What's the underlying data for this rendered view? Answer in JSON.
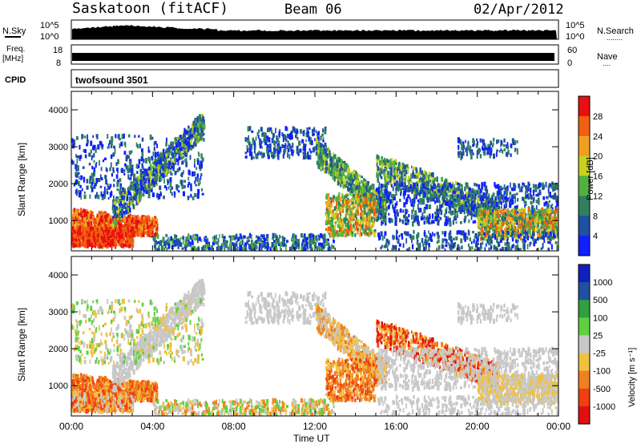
{
  "header": {
    "station": "Saskatoon (fitACF)",
    "beam": "Beam 06",
    "date": "02/Apr/2012"
  },
  "panels": {
    "nsky": {
      "label": "N.Sky",
      "left_ticks": [
        "10^5",
        "10^0"
      ],
      "right_ticks": [
        "10^5",
        "10^0"
      ],
      "right_label": "N.Search",
      "right_label_dots": "........"
    },
    "freq": {
      "label_line1": "Freq.",
      "label_line2": "[MHz]",
      "left_ticks": [
        "18",
        "8"
      ],
      "right_ticks": [
        "60",
        "0"
      ],
      "right_label": "Nave",
      "right_label_dots": "...."
    },
    "cpid": {
      "label": "CPID",
      "value": "twofsound 3501"
    }
  },
  "chart_data": [
    {
      "type": "heatmap",
      "title": "",
      "ylabel": "Slant Range [km]",
      "xlabel": "",
      "ylim": [
        180,
        4500
      ],
      "y_ticks": [
        "1000",
        "2000",
        "3000",
        "4000"
      ],
      "x_ticks": [
        "00:00",
        "04:00",
        "08:00",
        "12:00",
        "16:00",
        "20:00",
        "00:00"
      ],
      "colorbar": {
        "label": "Power [dB]",
        "ticks": [
          "4",
          "8",
          "12",
          "16",
          "20",
          "24",
          "28"
        ],
        "colors": [
          "#1020ff",
          "#2050a0",
          "#308060",
          "#50b040",
          "#c8d020",
          "#f0a020",
          "#f06010",
          "#e81010"
        ]
      }
    },
    {
      "type": "heatmap",
      "title": "",
      "ylabel": "Slant Range [km]",
      "xlabel": "Time UT",
      "ylim": [
        180,
        4500
      ],
      "y_ticks": [
        "1000",
        "2000",
        "3000",
        "4000"
      ],
      "x_ticks": [
        "00:00",
        "04:00",
        "08:00",
        "12:00",
        "16:00",
        "20:00",
        "00:00"
      ],
      "colorbar": {
        "label": "Velocity [m s⁻¹]",
        "ticks": [
          "1000",
          "500",
          "100",
          "25",
          "-25",
          "-100",
          "-500",
          "-1000"
        ],
        "colors": [
          "#1020c0",
          "#2050a0",
          "#30a040",
          "#60d040",
          "#c8c8c8",
          "#f0c040",
          "#f08020",
          "#f04010",
          "#e01010"
        ]
      }
    }
  ]
}
